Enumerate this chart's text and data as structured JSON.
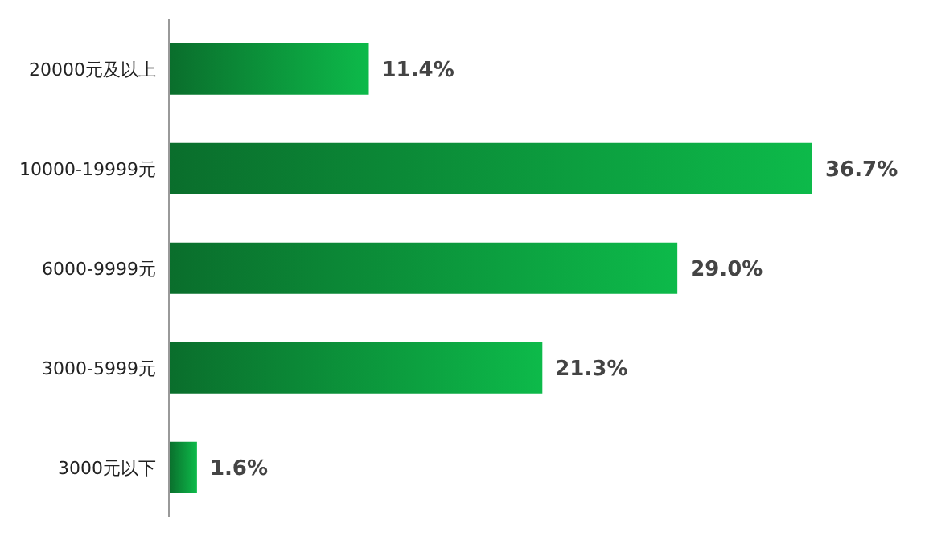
{
  "chart_data": {
    "type": "bar",
    "orientation": "horizontal",
    "categories": [
      "20000元及以上",
      "10000-19999元",
      "6000-9999元",
      "3000-5999元",
      "3000元以下"
    ],
    "values": [
      11.4,
      36.7,
      29.0,
      21.3,
      1.6
    ],
    "value_labels": [
      "11.4%",
      "36.7%",
      "29.0%",
      "21.3%",
      "1.6%"
    ],
    "color": "#0dba4a"
  }
}
